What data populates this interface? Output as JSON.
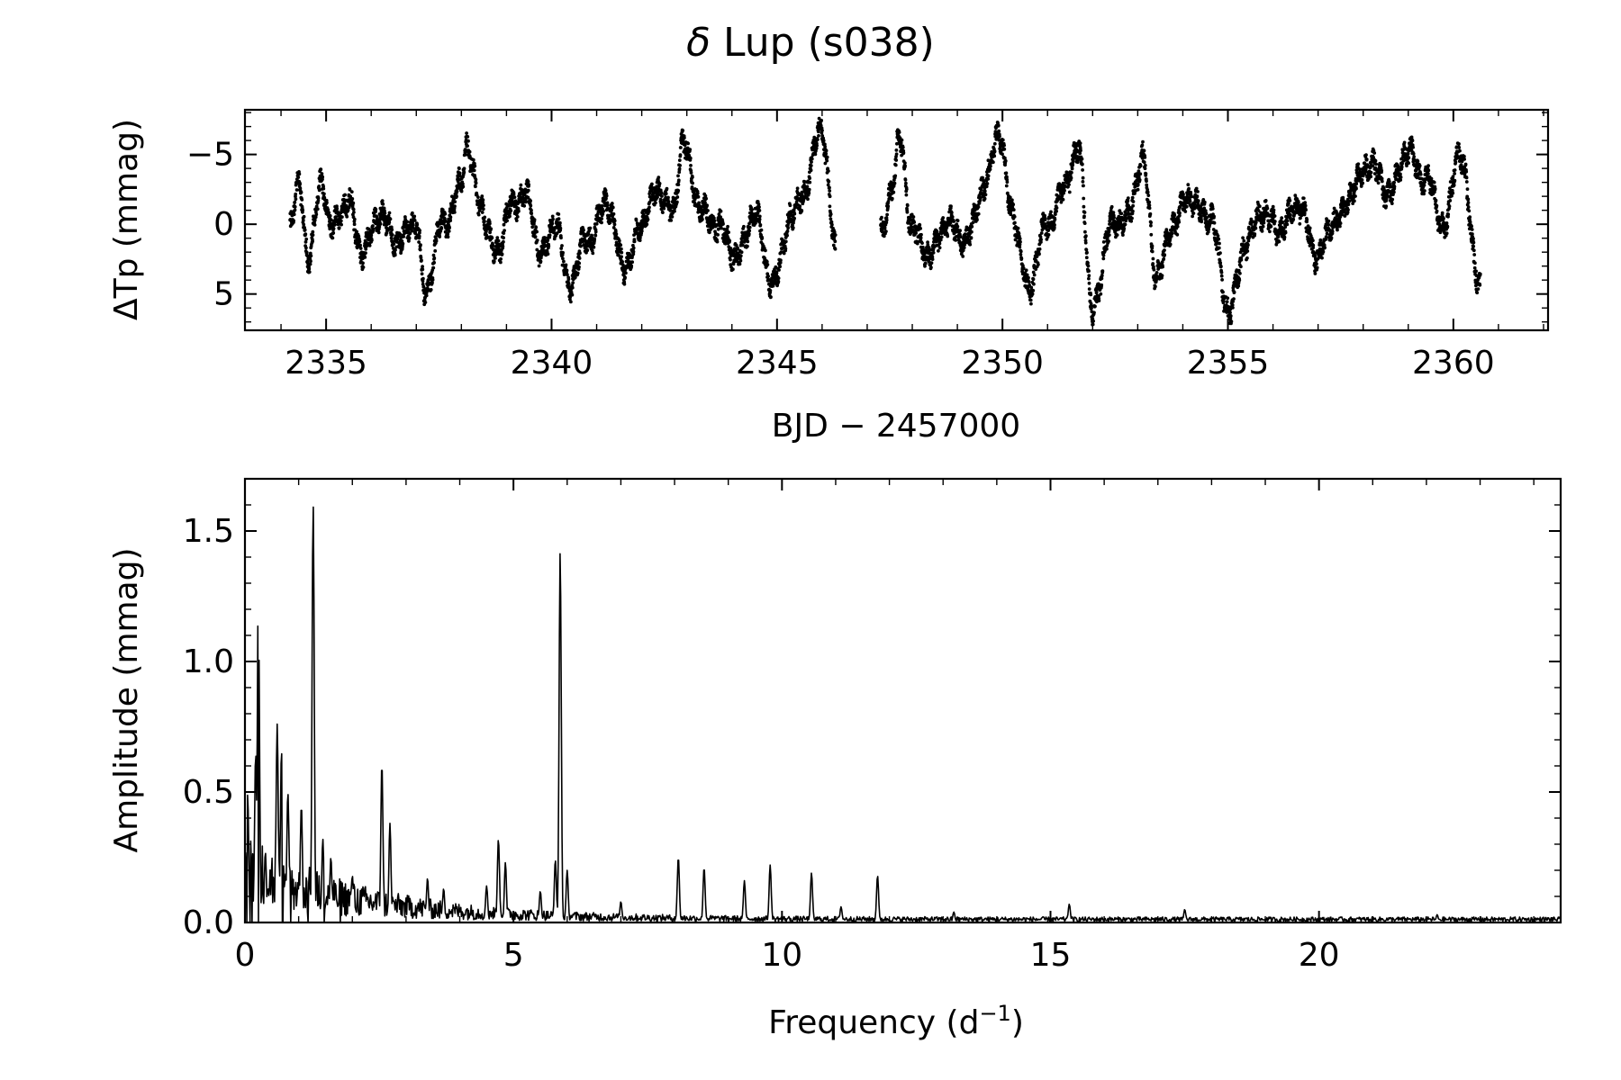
{
  "figure": {
    "title_prefix": "δ",
    "title_rest": " Lup  (s038)"
  },
  "chart_data": [
    {
      "type": "scatter",
      "name": "light-curve",
      "xlabel": "BJD − 2457000",
      "ylabel": "ΔTp (mmag)",
      "xlim": [
        2333.2,
        2362.1
      ],
      "ylim": [
        7.6,
        -8.2
      ],
      "y_inverted": true,
      "xticks": [
        2335,
        2340,
        2345,
        2350,
        2355,
        2360
      ],
      "xtick_labels": [
        "2335",
        "2340",
        "2345",
        "2350",
        "2355",
        "2360"
      ],
      "x_minor_step": 1,
      "yticks": [
        -5,
        0,
        5
      ],
      "ytick_labels": [
        "−5",
        "0",
        "5"
      ],
      "y_minor_step": 1,
      "segments": [
        [
          2334.2,
          2346.3
        ],
        [
          2347.3,
          2360.6
        ]
      ],
      "cadence_days": 0.0014,
      "key_points": {
        "x": [
          2334.2,
          2334.4,
          2334.6,
          2334.9,
          2335.1,
          2335.5,
          2335.8,
          2336.2,
          2336.6,
          2337.0,
          2337.2,
          2337.6,
          2338.0,
          2338.1,
          2338.4,
          2338.8,
          2339.1,
          2339.4,
          2339.8,
          2340.1,
          2340.4,
          2340.8,
          2341.2,
          2341.6,
          2342.0,
          2342.4,
          2342.7,
          2342.9,
          2343.3,
          2343.7,
          2344.1,
          2344.5,
          2344.9,
          2345.3,
          2345.6,
          2345.95,
          2346.3,
          2347.3,
          2347.6,
          2347.7,
          2348.0,
          2348.4,
          2348.8,
          2349.2,
          2349.6,
          2349.9,
          2350.2,
          2350.6,
          2351.0,
          2351.4,
          2351.7,
          2352.0,
          2352.4,
          2352.8,
          2353.1,
          2353.4,
          2353.8,
          2354.2,
          2354.6,
          2355.0,
          2355.4,
          2355.8,
          2356.2,
          2356.6,
          2357.0,
          2357.4,
          2357.8,
          2358.2,
          2358.6,
          2359.0,
          2359.4,
          2359.8,
          2360.1,
          2360.6
        ],
        "y": [
          0.0,
          -2.5,
          2.0,
          -3.0,
          0.5,
          -2.0,
          2.5,
          -1.0,
          1.5,
          -0.5,
          5.0,
          0.0,
          -3.0,
          -5.5,
          -1.5,
          2.0,
          -1.0,
          -2.5,
          2.5,
          -0.5,
          4.5,
          1.0,
          -1.5,
          3.0,
          0.0,
          -2.5,
          -1.0,
          -5.5,
          -1.5,
          0.5,
          2.0,
          -0.5,
          4.0,
          0.0,
          -2.5,
          -7.0,
          1.5,
          0.5,
          -3.0,
          -6.0,
          0.0,
          2.5,
          -0.5,
          1.5,
          -3.0,
          -6.5,
          -1.0,
          4.5,
          0.0,
          -3.0,
          -5.0,
          6.0,
          0.5,
          -1.0,
          -4.5,
          3.5,
          0.0,
          -2.0,
          -0.5,
          6.0,
          1.5,
          -1.0,
          0.5,
          -1.5,
          2.5,
          -0.5,
          -2.5,
          -4.5,
          -2.0,
          -5.5,
          -3.0,
          0.0,
          -5.0,
          4.0
        ]
      }
    },
    {
      "type": "line",
      "name": "amplitude-spectrum",
      "xlabel_main": "Frequency (d",
      "xlabel_sup": "−1",
      "xlabel_end": ")",
      "ylabel": "Amplitude (mmag)",
      "xlim": [
        0,
        24.5
      ],
      "ylim": [
        0,
        1.7
      ],
      "xticks": [
        0,
        5,
        10,
        15,
        20
      ],
      "xtick_labels": [
        "0",
        "5",
        "10",
        "15",
        "20"
      ],
      "x_minor_step": 1,
      "yticks": [
        0.0,
        0.5,
        1.0,
        1.5
      ],
      "ytick_labels": [
        "0.0",
        "0.5",
        "1.0",
        "1.5"
      ],
      "y_minor_step": 0.1,
      "peaks": [
        {
          "f": 0.05,
          "a": 0.49
        },
        {
          "f": 0.2,
          "a": 0.65
        },
        {
          "f": 0.25,
          "a": 1.29
        },
        {
          "f": 0.38,
          "a": 0.27
        },
        {
          "f": 0.6,
          "a": 0.76
        },
        {
          "f": 0.68,
          "a": 0.66
        },
        {
          "f": 0.8,
          "a": 0.5
        },
        {
          "f": 1.05,
          "a": 0.45
        },
        {
          "f": 1.27,
          "a": 1.6
        },
        {
          "f": 1.45,
          "a": 0.32
        },
        {
          "f": 1.6,
          "a": 0.25
        },
        {
          "f": 2.0,
          "a": 0.18
        },
        {
          "f": 2.55,
          "a": 0.61
        },
        {
          "f": 2.7,
          "a": 0.38
        },
        {
          "f": 3.4,
          "a": 0.17
        },
        {
          "f": 3.7,
          "a": 0.13
        },
        {
          "f": 4.5,
          "a": 0.14
        },
        {
          "f": 4.72,
          "a": 0.32
        },
        {
          "f": 4.85,
          "a": 0.23
        },
        {
          "f": 5.5,
          "a": 0.12
        },
        {
          "f": 5.78,
          "a": 0.24
        },
        {
          "f": 5.87,
          "a": 1.42
        },
        {
          "f": 6.0,
          "a": 0.2
        },
        {
          "f": 7.0,
          "a": 0.08
        },
        {
          "f": 8.07,
          "a": 0.25
        },
        {
          "f": 8.55,
          "a": 0.21
        },
        {
          "f": 9.3,
          "a": 0.16
        },
        {
          "f": 9.78,
          "a": 0.22
        },
        {
          "f": 10.55,
          "a": 0.19
        },
        {
          "f": 11.1,
          "a": 0.06
        },
        {
          "f": 11.78,
          "a": 0.18
        },
        {
          "f": 13.2,
          "a": 0.04
        },
        {
          "f": 15.35,
          "a": 0.07
        },
        {
          "f": 17.5,
          "a": 0.05
        },
        {
          "f": 22.2,
          "a": 0.03
        }
      ]
    }
  ]
}
